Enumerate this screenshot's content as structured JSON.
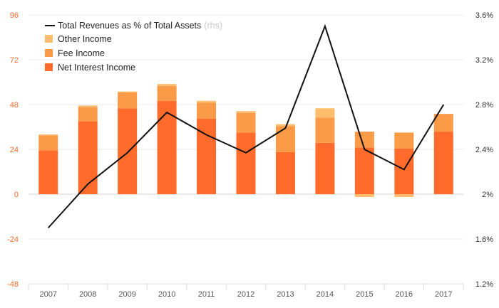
{
  "chart_data": {
    "type": "bar",
    "stacked": true,
    "categories": [
      "2007",
      "2008",
      "2009",
      "2010",
      "2011",
      "2012",
      "2013",
      "2014",
      "2015",
      "2016",
      "2017"
    ],
    "series": [
      {
        "name": "Net Interest Income",
        "values": [
          23.5,
          39,
          46,
          50,
          40.5,
          33,
          22.5,
          27.5,
          25,
          24.5,
          33.5
        ],
        "color": "#ff6b2b"
      },
      {
        "name": "Fee Income",
        "values": [
          8,
          7.5,
          8.5,
          8,
          8.5,
          10.5,
          14,
          13.5,
          8.5,
          8.5,
          9.5
        ],
        "color": "#fb9a47"
      },
      {
        "name": "Other Income",
        "values": [
          0.5,
          1,
          0.5,
          1,
          1,
          1,
          1,
          5,
          -1.5,
          -1.5,
          0
        ],
        "color": "#fdbd6c"
      }
    ],
    "line_series": {
      "name": "Total Revenues as % of Total Assets",
      "name_suffix": "(rhs)",
      "axis": "right",
      "values": [
        1.7,
        2.09,
        2.37,
        2.73,
        2.53,
        2.37,
        2.59,
        3.5,
        2.4,
        2.22,
        2.8
      ],
      "color": "#111111"
    },
    "ylim": [
      -48,
      96
    ],
    "yticks": [
      "96",
      "72",
      "48",
      "24",
      "0",
      "-24",
      "-48"
    ],
    "y2lim": [
      1.2,
      3.6
    ],
    "y2ticks": [
      "3.6%",
      "3.2%",
      "2.8%",
      "2.4%",
      "2%",
      "1.6%",
      "1.2%"
    ],
    "grid": true,
    "legend_position": "top-left",
    "title": "",
    "xlabel": "",
    "ylabel": ""
  },
  "colors": {
    "left_tick": "#f26b2a",
    "right_tick": "#333333",
    "x_tick": "#555555",
    "grid": "#e9e9e9",
    "zero_line": "#cfcfcf"
  }
}
